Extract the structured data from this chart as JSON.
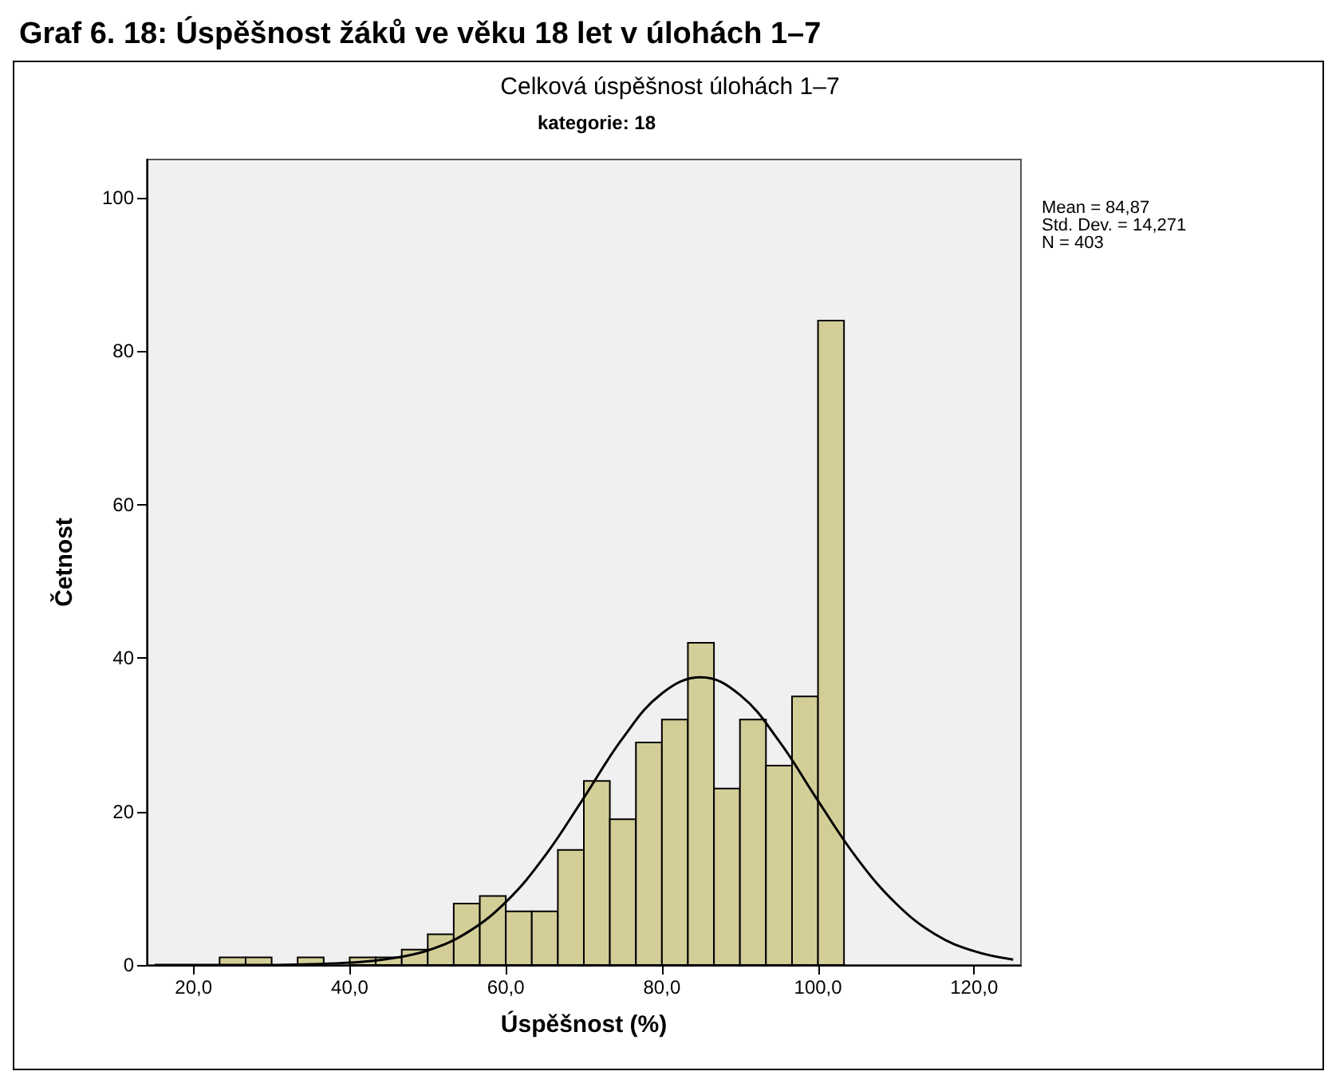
{
  "chart_data": {
    "type": "histogram",
    "title": "Celková úspěšnost úlohách 1–7",
    "subtitle": "kategorie: 18",
    "xlabel": "Úspěšnost (%)",
    "ylabel": "Četnost",
    "annotations": [
      "Graf 6. 18: Úspěšnost žáků ve věku 18 let v úlohách 1–7",
      "Mean = 84,87",
      "Std. Dev. = 14,271",
      "N = 403"
    ],
    "bins": [
      23.33,
      26.67,
      30,
      33.33,
      36.67,
      40,
      43.33,
      46.67,
      50,
      53.33,
      56.67,
      60,
      63.33,
      66.67,
      70,
      73.33,
      76.67,
      80,
      83.33,
      86.67,
      90,
      93.33,
      96.67,
      100,
      103.33
    ],
    "values": [
      1,
      1,
      0,
      1,
      0,
      1,
      1,
      2,
      4,
      8,
      9,
      7,
      7,
      15,
      24,
      19,
      29,
      32,
      42,
      23,
      32,
      26,
      35,
      84
    ],
    "color": "#d3ce98",
    "series": [
      {
        "type": "line",
        "color": "#000000",
        "marker": "none",
        "x": [
          15,
          20,
          25,
          30,
          35,
          40,
          45,
          50,
          55,
          60,
          65,
          70,
          75,
          80,
          85,
          90,
          95,
          100,
          105,
          110,
          115,
          120,
          125
        ],
        "values": [
          0,
          0,
          0,
          0,
          0.1,
          0.3,
          0.8,
          1.9,
          4.2,
          8.2,
          14.2,
          21.8,
          29.6,
          35.4,
          37.5,
          35.2,
          29.2,
          21.4,
          13.9,
          8,
          4,
          1.8,
          0.7
        ]
      }
    ],
    "xlim": [
      14,
      126
    ],
    "ylim": [
      0,
      105
    ],
    "xticks": [
      {
        "value": 20,
        "label": "20,0"
      },
      {
        "value": 40,
        "label": "40,0"
      },
      {
        "value": 60,
        "label": "60,0"
      },
      {
        "value": 80,
        "label": "80,0"
      },
      {
        "value": 100,
        "label": "100,0"
      },
      {
        "value": 120,
        "label": "120,0"
      }
    ],
    "yticks": [
      0,
      20,
      40,
      60,
      80,
      100
    ]
  }
}
